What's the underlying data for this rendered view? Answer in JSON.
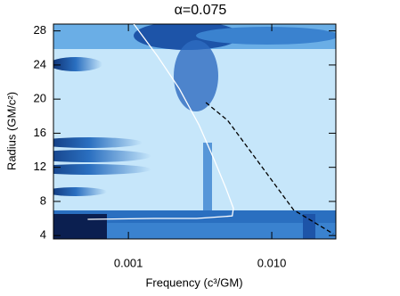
{
  "chart_data": {
    "type": "line",
    "title": "α=0.075",
    "xlabel": "Frequency (c³/GM)",
    "ylabel": "Radius (GM/c²)",
    "xscale": "log",
    "xlim": [
      0.0003,
      0.028
    ],
    "ylim": [
      3.6,
      28.8
    ],
    "xticks": [
      0.001,
      {
        "value": 0.01,
        "label": "0.010"
      }
    ],
    "yticks": [
      4,
      8,
      12,
      16,
      20,
      24,
      28
    ],
    "series": [
      {
        "color": "#ffffff",
        "dash": false,
        "x": [
          0.00109,
          0.0016,
          0.00227,
          0.0031,
          0.00399,
          0.0048,
          0.0054,
          0.0053,
          0.003,
          0.0015,
          0.00052
        ],
        "values": [
          28.8,
          25,
          21.2,
          17,
          12.8,
          9.5,
          7.2,
          6.3,
          6.0,
          6.0,
          5.9
        ]
      },
      {
        "color": "#000000",
        "dash": true,
        "x": [
          0.00347,
          0.00493,
          0.0093,
          0.0142,
          0.0269
        ],
        "values": [
          19.6,
          17.5,
          11.2,
          7.0,
          4.2
        ]
      }
    ]
  }
}
